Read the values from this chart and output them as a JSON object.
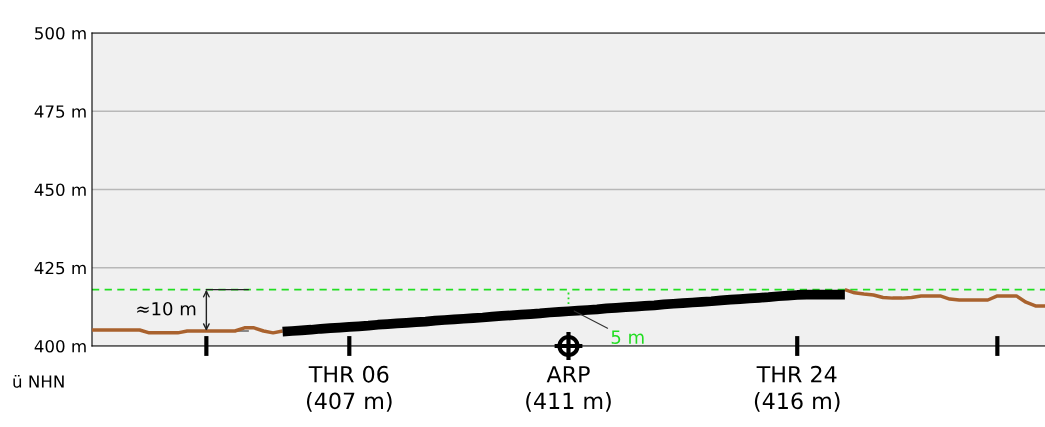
{
  "chart_data": {
    "type": "line",
    "categories": [
      null,
      null,
      null,
      null,
      null,
      null,
      null,
      null,
      null,
      null,
      null,
      null,
      null,
      null,
      null,
      null,
      null,
      null,
      null,
      null,
      null,
      null,
      null,
      null,
      null,
      null,
      null,
      "THR 06\n(407 m)",
      null,
      null,
      null,
      null,
      null,
      null,
      null,
      null,
      null,
      null,
      null,
      null,
      null,
      null,
      null,
      null,
      null,
      null,
      null,
      null,
      null,
      null,
      "ARP\n(411 m)",
      null,
      null,
      null,
      null,
      null,
      null,
      null,
      null,
      null,
      null,
      null,
      null,
      null,
      null,
      null,
      null,
      null,
      null,
      null,
      null,
      null,
      null,
      null,
      "THR 24\n(416 m)",
      null,
      null,
      null,
      null,
      null,
      null,
      null,
      null,
      null,
      null,
      null,
      null,
      null,
      null,
      null,
      null,
      null,
      null,
      null,
      null,
      null,
      null,
      null,
      null,
      null,
      null
    ],
    "ylim": [
      400,
      500
    ],
    "yticks": [
      {
        "value": 400,
        "label": "400 m"
      },
      {
        "value": 425,
        "label": "425 m"
      },
      {
        "value": 450,
        "label": "450 m"
      },
      {
        "value": 475,
        "label": "475 m"
      },
      {
        "value": 500,
        "label": "500 m"
      }
    ],
    "grid": "y",
    "series": [
      {
        "color": "#a9622e",
        "values": [
          405.1,
          405.1,
          405.1,
          405.1,
          405.1,
          405.1,
          404.2,
          404.2,
          404.2,
          404.2,
          404.8,
          404.8,
          404.8,
          404.8,
          404.8,
          404.8,
          405.8,
          405.8,
          404.8,
          404.2,
          404.8,
          null,
          null,
          null,
          null,
          null,
          null,
          null,
          null,
          null,
          null,
          null,
          null,
          null,
          null,
          null,
          null,
          null,
          null,
          null,
          null,
          null,
          null,
          null,
          null,
          null,
          null,
          null,
          null,
          null,
          null,
          null,
          null,
          null,
          null,
          null,
          null,
          null,
          null,
          null,
          null,
          null,
          null,
          null,
          null,
          null,
          null,
          null,
          null,
          null,
          null,
          null,
          null,
          null,
          null,
          null,
          null,
          null,
          null,
          null,
          null,
          null,
          null,
          null,
          null,
          null,
          null,
          null,
          null,
          null,
          null,
          null,
          null,
          null,
          null,
          null,
          null,
          null,
          null,
          null,
          null
        ]
      },
      {
        "color": "#a9622e",
        "values": [
          null,
          null,
          null,
          null,
          null,
          null,
          null,
          null,
          null,
          null,
          null,
          null,
          null,
          null,
          null,
          null,
          null,
          null,
          null,
          null,
          null,
          null,
          null,
          null,
          null,
          null,
          null,
          null,
          null,
          null,
          null,
          null,
          null,
          null,
          null,
          null,
          null,
          null,
          null,
          null,
          null,
          null,
          null,
          null,
          null,
          null,
          null,
          null,
          null,
          null,
          null,
          null,
          null,
          null,
          null,
          null,
          null,
          null,
          null,
          null,
          null,
          null,
          null,
          null,
          null,
          null,
          null,
          null,
          null,
          null,
          null,
          null,
          null,
          null,
          null,
          null,
          null,
          null,
          null,
          418,
          417,
          416.6,
          416.3,
          415.5,
          415.3,
          415.3,
          415.5,
          416,
          416,
          416,
          415,
          414.7,
          414.7,
          414.7,
          414.7,
          416,
          416,
          416,
          414,
          412.8,
          412.8
        ]
      },
      {
        "color": "#000000",
        "values": [
          null,
          null,
          null,
          null,
          null,
          null,
          null,
          null,
          null,
          null,
          null,
          null,
          null,
          null,
          null,
          null,
          null,
          null,
          null,
          null,
          404.6,
          404.8,
          405.0,
          405.2,
          405.5,
          405.7,
          405.9,
          406.1,
          406.3,
          406.5,
          406.8,
          407.0,
          407.2,
          407.4,
          407.6,
          407.8,
          408.1,
          408.3,
          408.5,
          408.7,
          408.9,
          409.1,
          409.4,
          409.6,
          409.8,
          410.0,
          410.2,
          410.4,
          410.7,
          410.9,
          411.1,
          411.3,
          411.5,
          411.7,
          412.0,
          412.2,
          412.4,
          412.6,
          412.8,
          413.0,
          413.3,
          413.5,
          413.7,
          413.9,
          414.1,
          414.3,
          414.6,
          414.8,
          415.0,
          415.2,
          415.4,
          415.6,
          415.9,
          416.1,
          416.3,
          416.4,
          416.4,
          416.4,
          416.4,
          416.4,
          null,
          null,
          null,
          null,
          null,
          null,
          null,
          null,
          null,
          null,
          null,
          null,
          null,
          null,
          null,
          null,
          null,
          null,
          null,
          null,
          null
        ]
      }
    ],
    "ref_lines": [
      {
        "axis": "y",
        "value": 418,
        "color": "#22dd22",
        "line_style": "dashed"
      }
    ],
    "annotations": [
      {
        "text": "≈10 m",
        "y": 418
      },
      {
        "text": "5 m",
        "y": 411.2
      },
      "ü NHN"
    ]
  }
}
